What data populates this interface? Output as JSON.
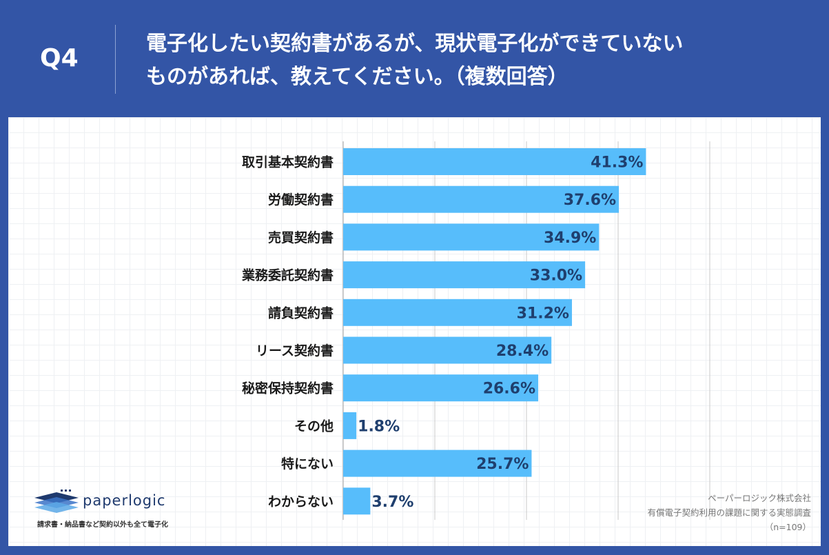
{
  "header": {
    "q_number": "Q4",
    "question_line1": "電子化したい契約書があるが、現状電子化ができていない",
    "question_line2": "ものがあれば、教えてください。（複数回答）"
  },
  "chart_data": {
    "type": "bar",
    "orientation": "horizontal",
    "title": "電子化したい契約書があるが、現状電子化ができていないものがあれば、教えてください。（複数回答）",
    "categories": [
      "取引基本契約書",
      "労働契約書",
      "売買契約書",
      "業務委託契約書",
      "請負契約書",
      "リース契約書",
      "秘密保持契約書",
      "その他",
      "特にない",
      "わからない"
    ],
    "values": [
      41.3,
      37.6,
      34.9,
      33.0,
      31.2,
      28.4,
      26.6,
      1.8,
      25.7,
      3.7
    ],
    "value_labels": [
      "41.3%",
      "37.6%",
      "34.9%",
      "33.0%",
      "31.2%",
      "28.4%",
      "26.6%",
      "1.8%",
      "25.7%",
      "3.7%"
    ],
    "unit": "%",
    "xlim": [
      0,
      50
    ],
    "gridlines": [
      0,
      12.5,
      25,
      37.5,
      50
    ],
    "bar_color": "#57bdfb",
    "label_color": "#1f3f6e"
  },
  "logo": {
    "name": "paperlogic",
    "tagline": "請求書・納品書など契約以外も全て電子化"
  },
  "source": {
    "company": "ペーパーロジック株式会社",
    "survey": "有償電子契約利用の課題に関する実態調査",
    "sample": "（n=109）"
  },
  "colors": {
    "background": "#3355a6",
    "card": "#ffffff"
  }
}
